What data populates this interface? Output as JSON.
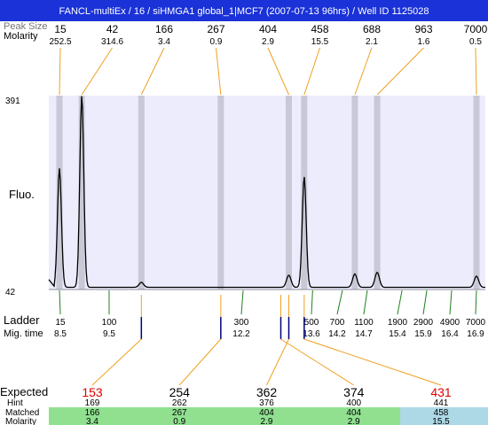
{
  "window": {
    "title": "FANCL-multiEx / 16 / siHMGA1 global_1|MCF7 (2007-07-13 96hrs) / Well ID 1125028"
  },
  "top_rows": {
    "size_label": "Peak Size",
    "molarity_label": "Molarity"
  },
  "axis": {
    "y_label": "Fluo.",
    "y_max_label": "391",
    "y_min_label": "42"
  },
  "ladder_rows": {
    "ladder_label": "Ladder",
    "mig_label": "Mig. time"
  },
  "bottom_rows": {
    "expected_label": "Expected",
    "hint_label": "Hint",
    "matched_label": "Matched",
    "molarity_label": "Molarity"
  },
  "colors": {
    "title_bg": "#1a32d8",
    "plot_bg": "#ececfc",
    "peak_band": "#c8c8d6",
    "orange": "#f0a020",
    "green": "#208020",
    "navy": "#000080",
    "red": "#e00000",
    "matched_green": "#90e090",
    "matched_blue": "#add8e6"
  },
  "chart_data": {
    "type": "line",
    "ylim": [
      42,
      391
    ],
    "peaks": [
      {
        "size": "15",
        "molarity": "252.5",
        "mig": 8.5,
        "height": 260
      },
      {
        "size": "42",
        "molarity": "314.6",
        "mig": 8.95,
        "height": 391
      },
      {
        "size": "166",
        "molarity": "3.4",
        "mig": 10.15,
        "height": 55
      },
      {
        "size": "267",
        "molarity": "0.9",
        "mig": 11.75,
        "height": 46
      },
      {
        "size": "404",
        "molarity": "2.9",
        "mig": 13.12,
        "height": 68
      },
      {
        "size": "458",
        "molarity": "15.5",
        "mig": 13.43,
        "height": 245
      },
      {
        "size": "688",
        "molarity": "2.1",
        "mig": 14.45,
        "height": 70
      },
      {
        "size": "963",
        "molarity": "1.6",
        "mig": 14.9,
        "height": 73
      },
      {
        "size": "7000",
        "molarity": "0.5",
        "mig": 16.9,
        "height": 66
      }
    ],
    "ladder": [
      {
        "size": "15",
        "mig": "8.5",
        "t": 8.5
      },
      {
        "size": "100",
        "mig": "9.5",
        "t": 9.5
      },
      {
        "size": "300",
        "mig": "12.2",
        "t": 12.2
      },
      {
        "size": "500",
        "mig": "13.6",
        "t": 13.6
      },
      {
        "size": "700",
        "mig": "14.2",
        "t": 14.2
      },
      {
        "size": "1100",
        "mig": "14.7",
        "t": 14.7
      },
      {
        "size": "1900",
        "mig": "15.4",
        "t": 15.4
      },
      {
        "size": "2900",
        "mig": "15.9",
        "t": 15.9
      },
      {
        "size": "4900",
        "mig": "16.4",
        "t": 16.4
      },
      {
        "size": "7000",
        "mig": "16.9",
        "t": 16.9
      }
    ],
    "expected": [
      {
        "expected": "153",
        "hint": "169",
        "matched": "166",
        "molarity": "3.4",
        "color": "red",
        "peak_index": 2,
        "matched_bg": "green"
      },
      {
        "expected": "254",
        "hint": "262",
        "matched": "267",
        "molarity": "0.9",
        "color": "black",
        "peak_index": 3,
        "matched_bg": "green"
      },
      {
        "expected": "362",
        "hint": "376",
        "matched": "404",
        "molarity": "2.9",
        "color": "black",
        "peak_index": 4,
        "matched_bg": "green"
      },
      {
        "expected": "374",
        "hint": "400",
        "matched": "404",
        "molarity": "2.9",
        "color": "black",
        "peak_index": 4,
        "matched_bg": "green"
      },
      {
        "expected": "431",
        "hint": "441",
        "matched": "458",
        "molarity": "15.5",
        "color": "red",
        "peak_index": 5,
        "matched_bg": "blue"
      }
    ]
  }
}
